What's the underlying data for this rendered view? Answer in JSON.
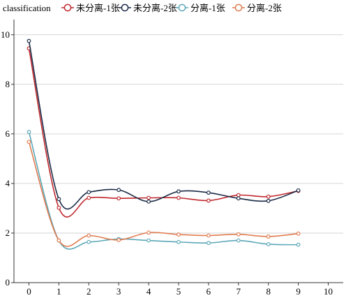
{
  "chart_data": {
    "type": "line",
    "legend_title": "classification",
    "legend_position": "top-left",
    "x": [
      0,
      1,
      2,
      3,
      4,
      5,
      6,
      7,
      8,
      9
    ],
    "xlim": [
      -0.5,
      10.5
    ],
    "xticks": [
      0,
      1,
      2,
      3,
      4,
      5,
      6,
      7,
      8,
      9,
      10
    ],
    "ylim": [
      0,
      10.5
    ],
    "yticks": [
      0,
      2,
      4,
      6,
      8,
      10
    ],
    "grid": true,
    "smooth": true,
    "series": [
      {
        "name": "未分离-1张",
        "color": "#c0272d",
        "values": [
          9.45,
          3.02,
          3.42,
          3.4,
          3.42,
          3.42,
          3.31,
          3.53,
          3.47,
          3.7
        ]
      },
      {
        "name": "未分离-2张",
        "color": "#1a2a45",
        "values": [
          9.75,
          3.37,
          3.65,
          3.74,
          3.27,
          3.68,
          3.63,
          3.4,
          3.3,
          3.72
        ]
      },
      {
        "name": "分离-1张",
        "color": "#5ca8b8",
        "values": [
          6.08,
          1.7,
          1.64,
          1.76,
          1.7,
          1.64,
          1.6,
          1.7,
          1.55,
          1.53
        ]
      },
      {
        "name": "分离-2张",
        "color": "#e07b4f",
        "values": [
          5.68,
          1.7,
          1.9,
          1.72,
          2.02,
          1.94,
          1.9,
          1.95,
          1.86,
          1.98
        ]
      }
    ]
  }
}
